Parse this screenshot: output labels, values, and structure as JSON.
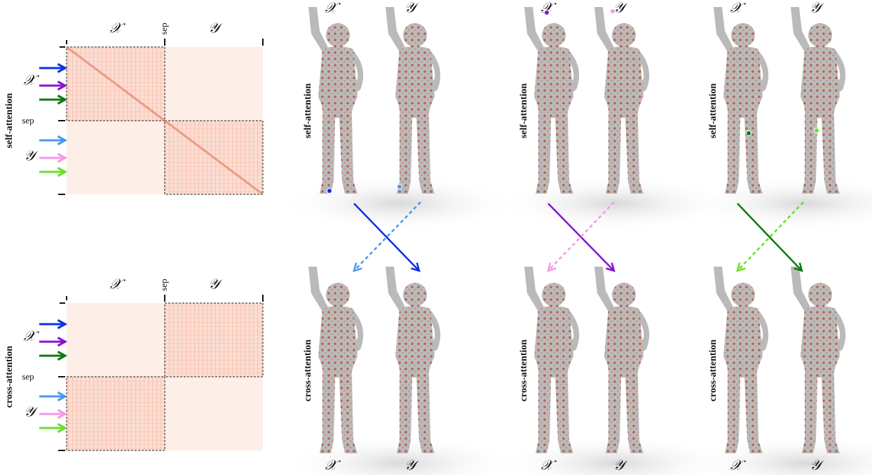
{
  "heatmaps": [
    {
      "title": "self-attention",
      "top_labels": [
        "𝒳",
        "sep",
        "𝒴"
      ],
      "side_labels": [
        "𝒳",
        "sep",
        "𝒴"
      ]
    },
    {
      "title": "cross-attention",
      "top_labels": [
        "𝒳",
        "sep",
        "𝒴"
      ],
      "side_labels": [
        "𝒳",
        "sep",
        "𝒴"
      ]
    }
  ],
  "renders": {
    "top_row": [
      {
        "title": "self-attention",
        "labels": [
          "𝒳",
          "𝒴"
        ]
      },
      {
        "title": "self-attention",
        "labels": [
          "𝒳",
          "𝒴"
        ]
      },
      {
        "title": "self-attention",
        "labels": [
          "𝒳",
          "𝒴"
        ]
      }
    ],
    "bottom_row": [
      {
        "title": "cross-attention",
        "labels": [
          "𝒳",
          "𝒴"
        ]
      },
      {
        "title": "cross-attention",
        "labels": [
          "𝒳",
          "𝒴"
        ]
      },
      {
        "title": "cross-attention",
        "labels": [
          "𝒳",
          "𝒴"
        ]
      }
    ]
  }
}
